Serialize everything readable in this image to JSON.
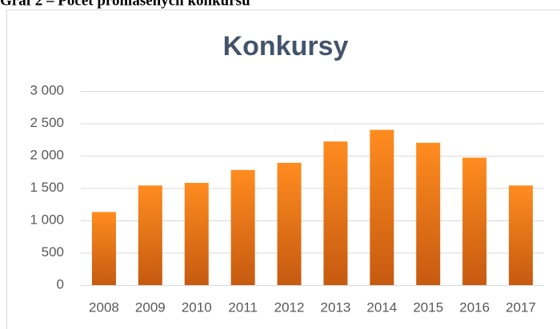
{
  "caption": "Graf 2 – Počet prohlášených konkursů",
  "chart_data": {
    "type": "bar",
    "title": "Konkursy",
    "categories": [
      "2008",
      "2009",
      "2010",
      "2011",
      "2012",
      "2013",
      "2014",
      "2015",
      "2016",
      "2017"
    ],
    "values": [
      1130,
      1540,
      1580,
      1780,
      1890,
      2220,
      2400,
      2200,
      1970,
      1540
    ],
    "color": [
      "#ff8c1f",
      "#c65a10"
    ],
    "ylim": [
      0,
      3000
    ],
    "yticks": [
      0,
      500,
      {
        "value": 1000,
        "label": "1 000"
      },
      {
        "value": 1500,
        "label": "1 500"
      },
      {
        "value": 2000,
        "label": "2 000"
      },
      {
        "value": 2500,
        "label": "2 500"
      },
      {
        "value": 3000,
        "label": "3 000"
      }
    ],
    "grid": true
  }
}
